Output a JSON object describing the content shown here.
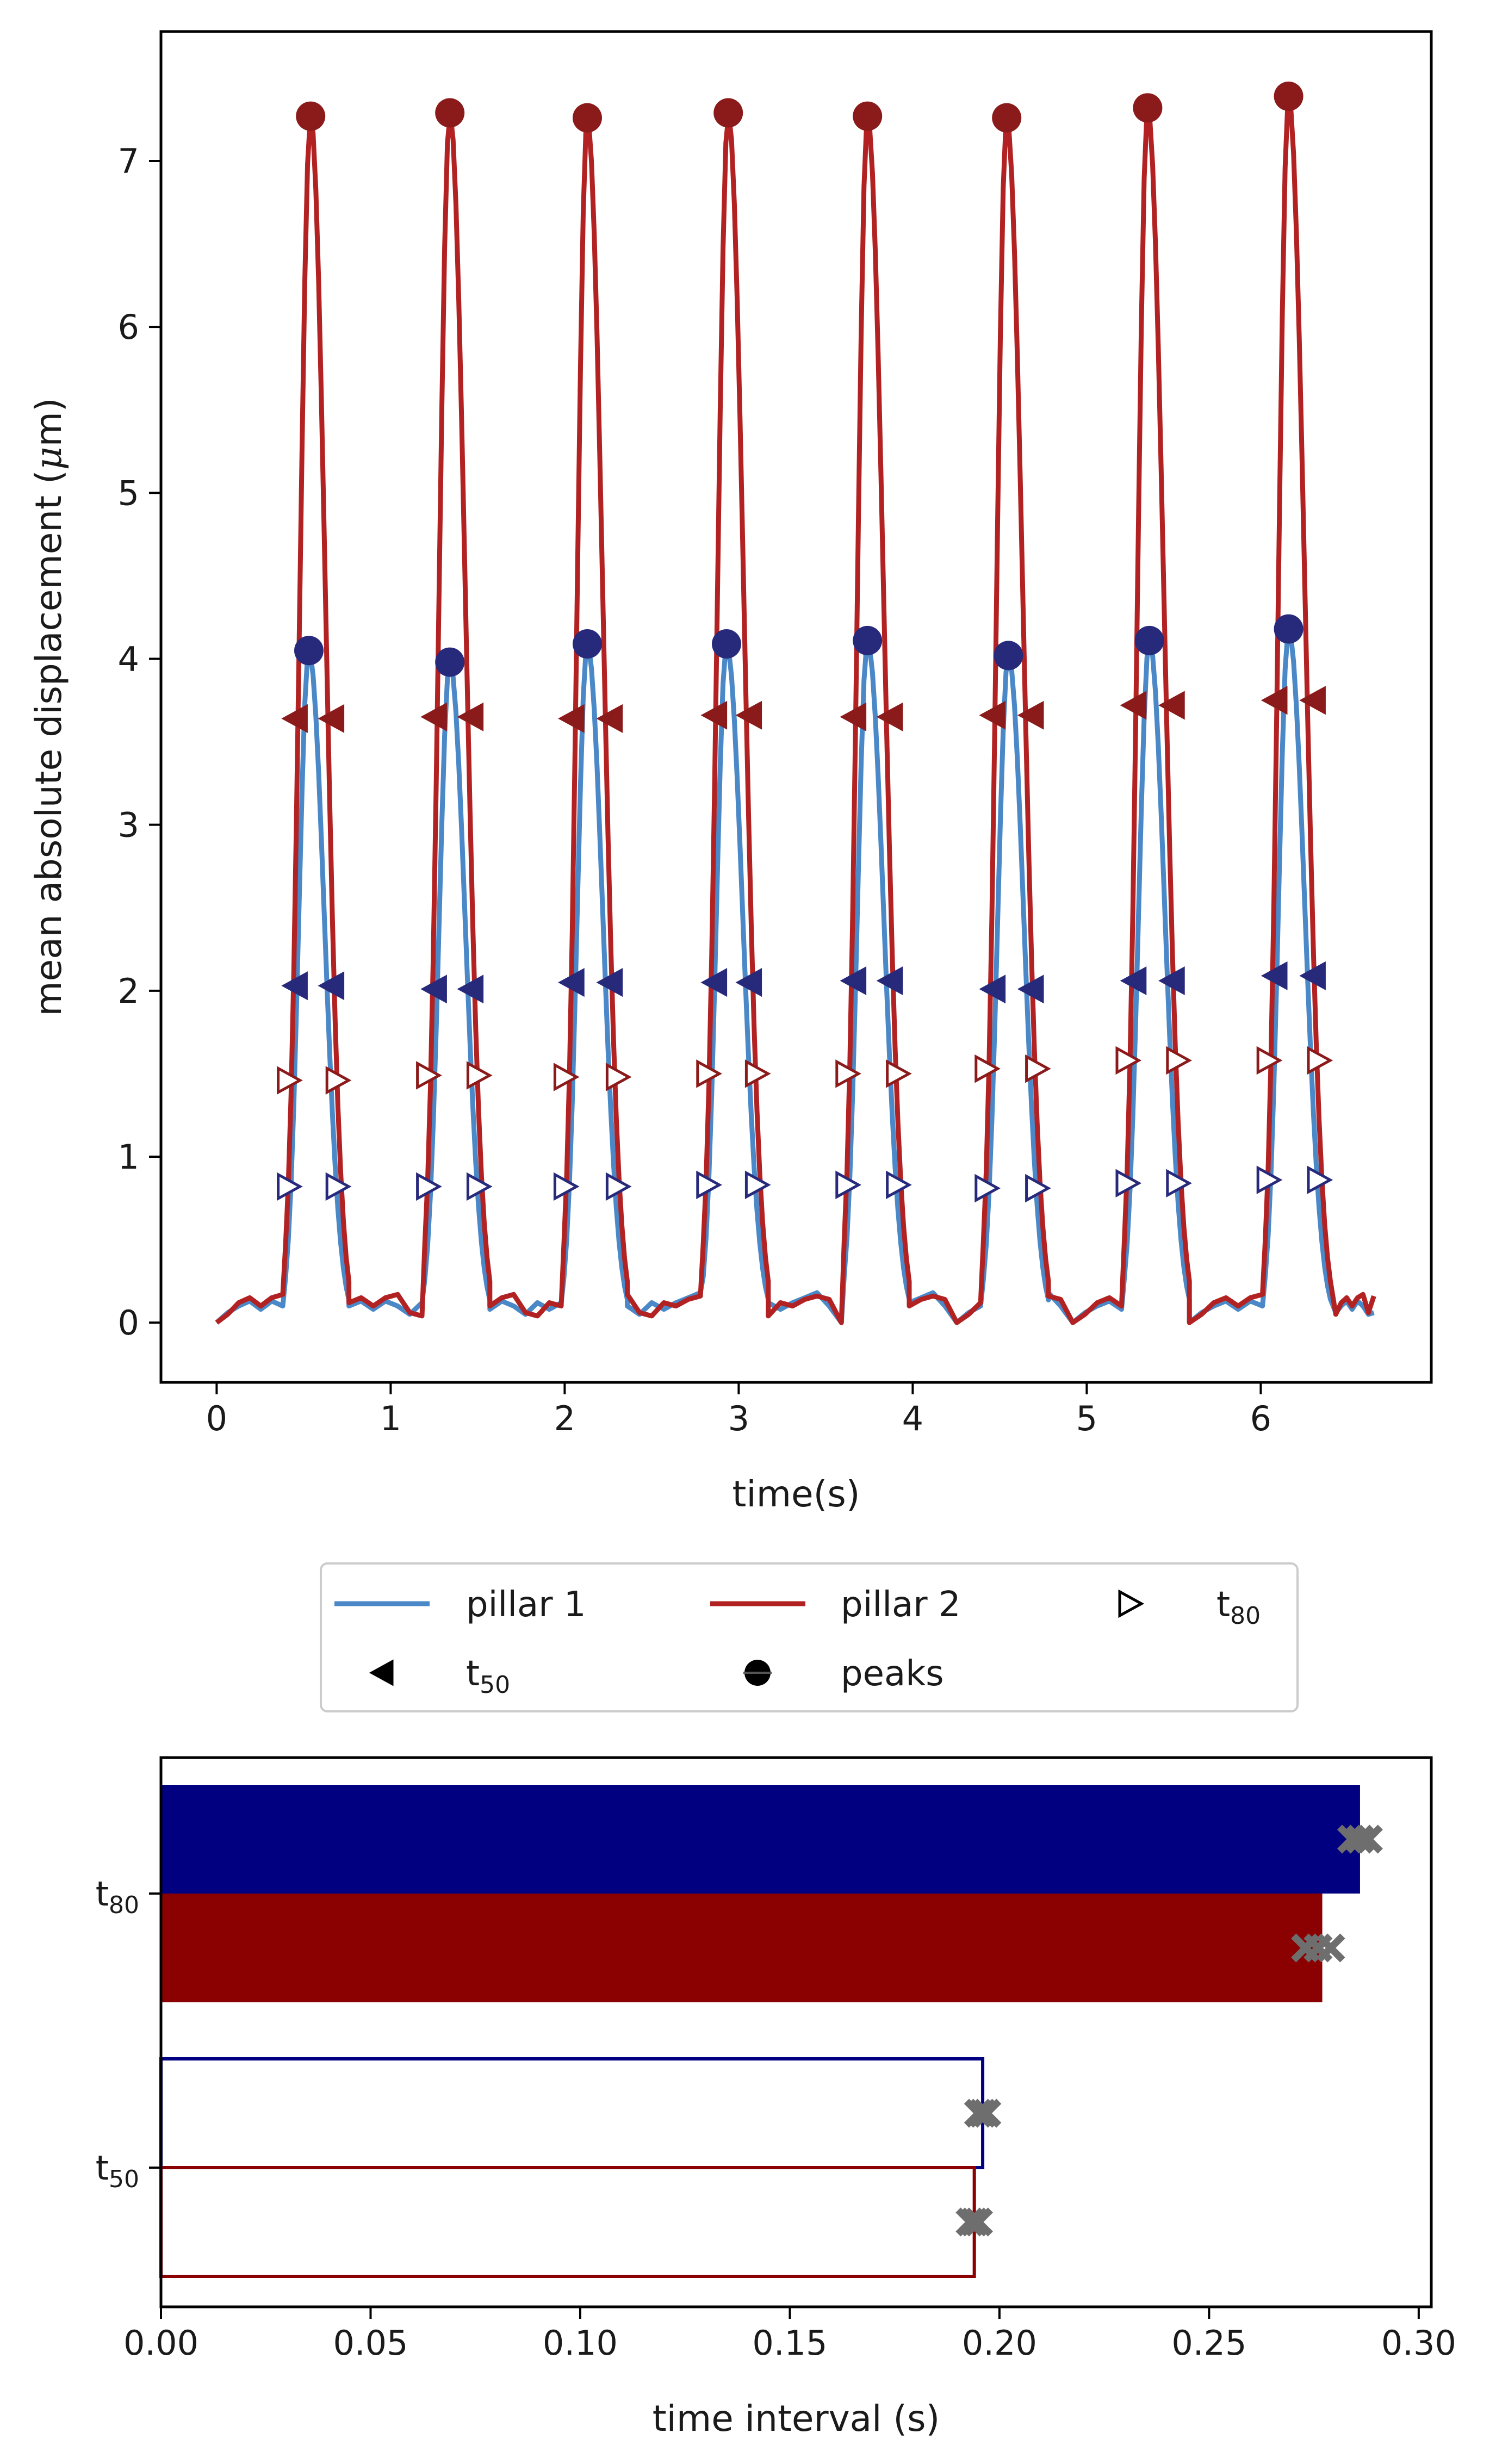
{
  "chart_data": [
    {
      "type": "line",
      "xlabel": "time(s)",
      "ylabel_parts": [
        "mean absolute displacement (",
        "μ",
        "m)"
      ],
      "xlim": [
        -0.32,
        6.98
      ],
      "ylim": [
        -0.36,
        7.78
      ],
      "xticks": [
        0,
        1,
        2,
        3,
        4,
        5,
        6
      ],
      "xtick_labels": [
        "0",
        "1",
        "2",
        "3",
        "4",
        "5",
        "6"
      ],
      "yticks": [
        0,
        1,
        2,
        3,
        4,
        5,
        6,
        7
      ],
      "ytick_labels": [
        "0",
        "1",
        "2",
        "3",
        "4",
        "5",
        "6",
        "7"
      ],
      "grid": false,
      "colors": {
        "pillar1": "#4a88c7",
        "pillar2": "#b22222",
        "peaks1": "#27297a",
        "peaks2": "#8b1a1a",
        "t50_1": "#27297a",
        "t50_2": "#8b1a1a",
        "t80_1": "#27297a",
        "t80_2": "#8b1a1a"
      },
      "baseline": {
        "pillar1": [
          0.0,
          0.06,
          0.1,
          0.13,
          0.08,
          0.13,
          0.1,
          0.05,
          0.12,
          0.08,
          0.12,
          0.15,
          0.18,
          0.1
        ],
        "pillar2": [
          0.0,
          0.05,
          0.12,
          0.15,
          0.1,
          0.15,
          0.17,
          0.06,
          0.04,
          0.12,
          0.1,
          0.14,
          0.16,
          0.14
        ]
      },
      "series": [
        {
          "name": "pillar 1",
          "kind": "line",
          "peaks_t": [
            0.53,
            1.34,
            2.13,
            2.93,
            3.74,
            4.55,
            5.36,
            6.16
          ],
          "peaks_y": [
            4.05,
            3.98,
            4.09,
            4.09,
            4.11,
            4.02,
            4.11,
            4.18
          ],
          "rise_start_t": [
            0.38,
            1.18,
            1.98,
            2.78,
            3.59,
            4.39,
            5.2,
            6.01
          ],
          "fall_end_t": [
            0.76,
            1.57,
            2.36,
            3.17,
            3.98,
            4.78,
            5.59,
            6.4
          ]
        },
        {
          "name": "pillar 2",
          "kind": "line",
          "peaks_t": [
            0.54,
            1.34,
            2.13,
            2.94,
            3.74,
            4.54,
            5.35,
            6.16
          ],
          "peaks_y": [
            7.27,
            7.29,
            7.26,
            7.29,
            7.27,
            7.26,
            7.32,
            7.39
          ],
          "rise_start_t": [
            0.38,
            1.18,
            1.98,
            2.78,
            3.59,
            4.39,
            5.2,
            6.01
          ],
          "fall_end_t": [
            0.76,
            1.57,
            2.36,
            3.17,
            3.98,
            4.78,
            5.59,
            6.4
          ]
        }
      ],
      "t50_pillar1": {
        "left_t": [
          0.45,
          1.25,
          2.04,
          2.86,
          3.66,
          4.46,
          5.27,
          6.08
        ],
        "right_t": [
          0.66,
          1.46,
          2.26,
          3.06,
          3.87,
          4.68,
          5.49,
          6.3
        ],
        "y": [
          2.03,
          2.01,
          2.05,
          2.05,
          2.06,
          2.01,
          2.06,
          2.09
        ]
      },
      "t50_pillar2": {
        "left_t": [
          0.45,
          1.25,
          2.04,
          2.86,
          3.66,
          4.46,
          5.27,
          6.08
        ],
        "right_t": [
          0.66,
          1.46,
          2.26,
          3.06,
          3.87,
          4.68,
          5.49,
          6.3
        ],
        "y": [
          3.64,
          3.65,
          3.64,
          3.66,
          3.65,
          3.66,
          3.72,
          3.75
        ]
      },
      "t80_pillar1": {
        "left_t": [
          0.41,
          1.21,
          2.0,
          2.82,
          3.62,
          4.42,
          5.23,
          6.04
        ],
        "right_t": [
          0.69,
          1.5,
          2.3,
          3.1,
          3.91,
          4.71,
          5.52,
          6.33
        ],
        "y": [
          0.82,
          0.82,
          0.82,
          0.83,
          0.83,
          0.81,
          0.84,
          0.86
        ]
      },
      "t80_pillar2": {
        "left_t": [
          0.41,
          1.21,
          2.0,
          2.82,
          3.62,
          4.42,
          5.23,
          6.04
        ],
        "right_t": [
          0.69,
          1.5,
          2.3,
          3.1,
          3.91,
          4.71,
          5.52,
          6.33
        ],
        "y": [
          1.46,
          1.49,
          1.48,
          1.5,
          1.5,
          1.53,
          1.58,
          1.58
        ]
      },
      "x_end": 6.65,
      "y_end": {
        "pillar1": 0.06,
        "pillar2": 0.16
      }
    },
    {
      "type": "bar",
      "orientation": "horizontal",
      "xlabel": "time interval (s)",
      "xlim": [
        0.0,
        0.303
      ],
      "xticks": [
        0.0,
        0.05,
        0.1,
        0.15,
        0.2,
        0.25,
        0.3
      ],
      "xtick_labels": [
        "0.00",
        "0.05",
        "0.10",
        "0.15",
        "0.20",
        "0.25",
        "0.30"
      ],
      "categories": [
        {
          "label": "t",
          "sub": "80"
        },
        {
          "label": "t",
          "sub": "50"
        }
      ],
      "series": [
        {
          "name": "pillar 1",
          "color": "#000080",
          "values": [
            0.286,
            0.196
          ],
          "filled": [
            true,
            false
          ]
        },
        {
          "name": "pillar 2",
          "color": "#8b0000",
          "values": [
            0.277,
            0.194
          ],
          "filled": [
            true,
            false
          ]
        }
      ],
      "individual_points": {
        "pillar1": [
          [
            0.284,
            0.286,
            0.288
          ],
          [
            0.195,
            0.196,
            0.197
          ]
        ],
        "pillar2": [
          [
            0.273,
            0.276,
            0.279
          ],
          [
            0.193,
            0.194,
            0.195
          ]
        ]
      },
      "point_color": "#6e6e6e"
    }
  ],
  "legend": {
    "placement": "between plots, centered",
    "items": [
      {
        "label": "pillar 1",
        "marker": "line",
        "color": "#4a88c7"
      },
      {
        "label": "pillar 2",
        "marker": "line",
        "color": "#b22222"
      },
      {
        "label": "t",
        "sub": "80",
        "marker": "open-right-triangle",
        "color": "#000000"
      },
      {
        "label": "t",
        "sub": "50",
        "marker": "filled-left-triangle",
        "color": "#000000"
      },
      {
        "label": "peaks",
        "marker": "half-circle",
        "color": "#000000"
      }
    ]
  }
}
